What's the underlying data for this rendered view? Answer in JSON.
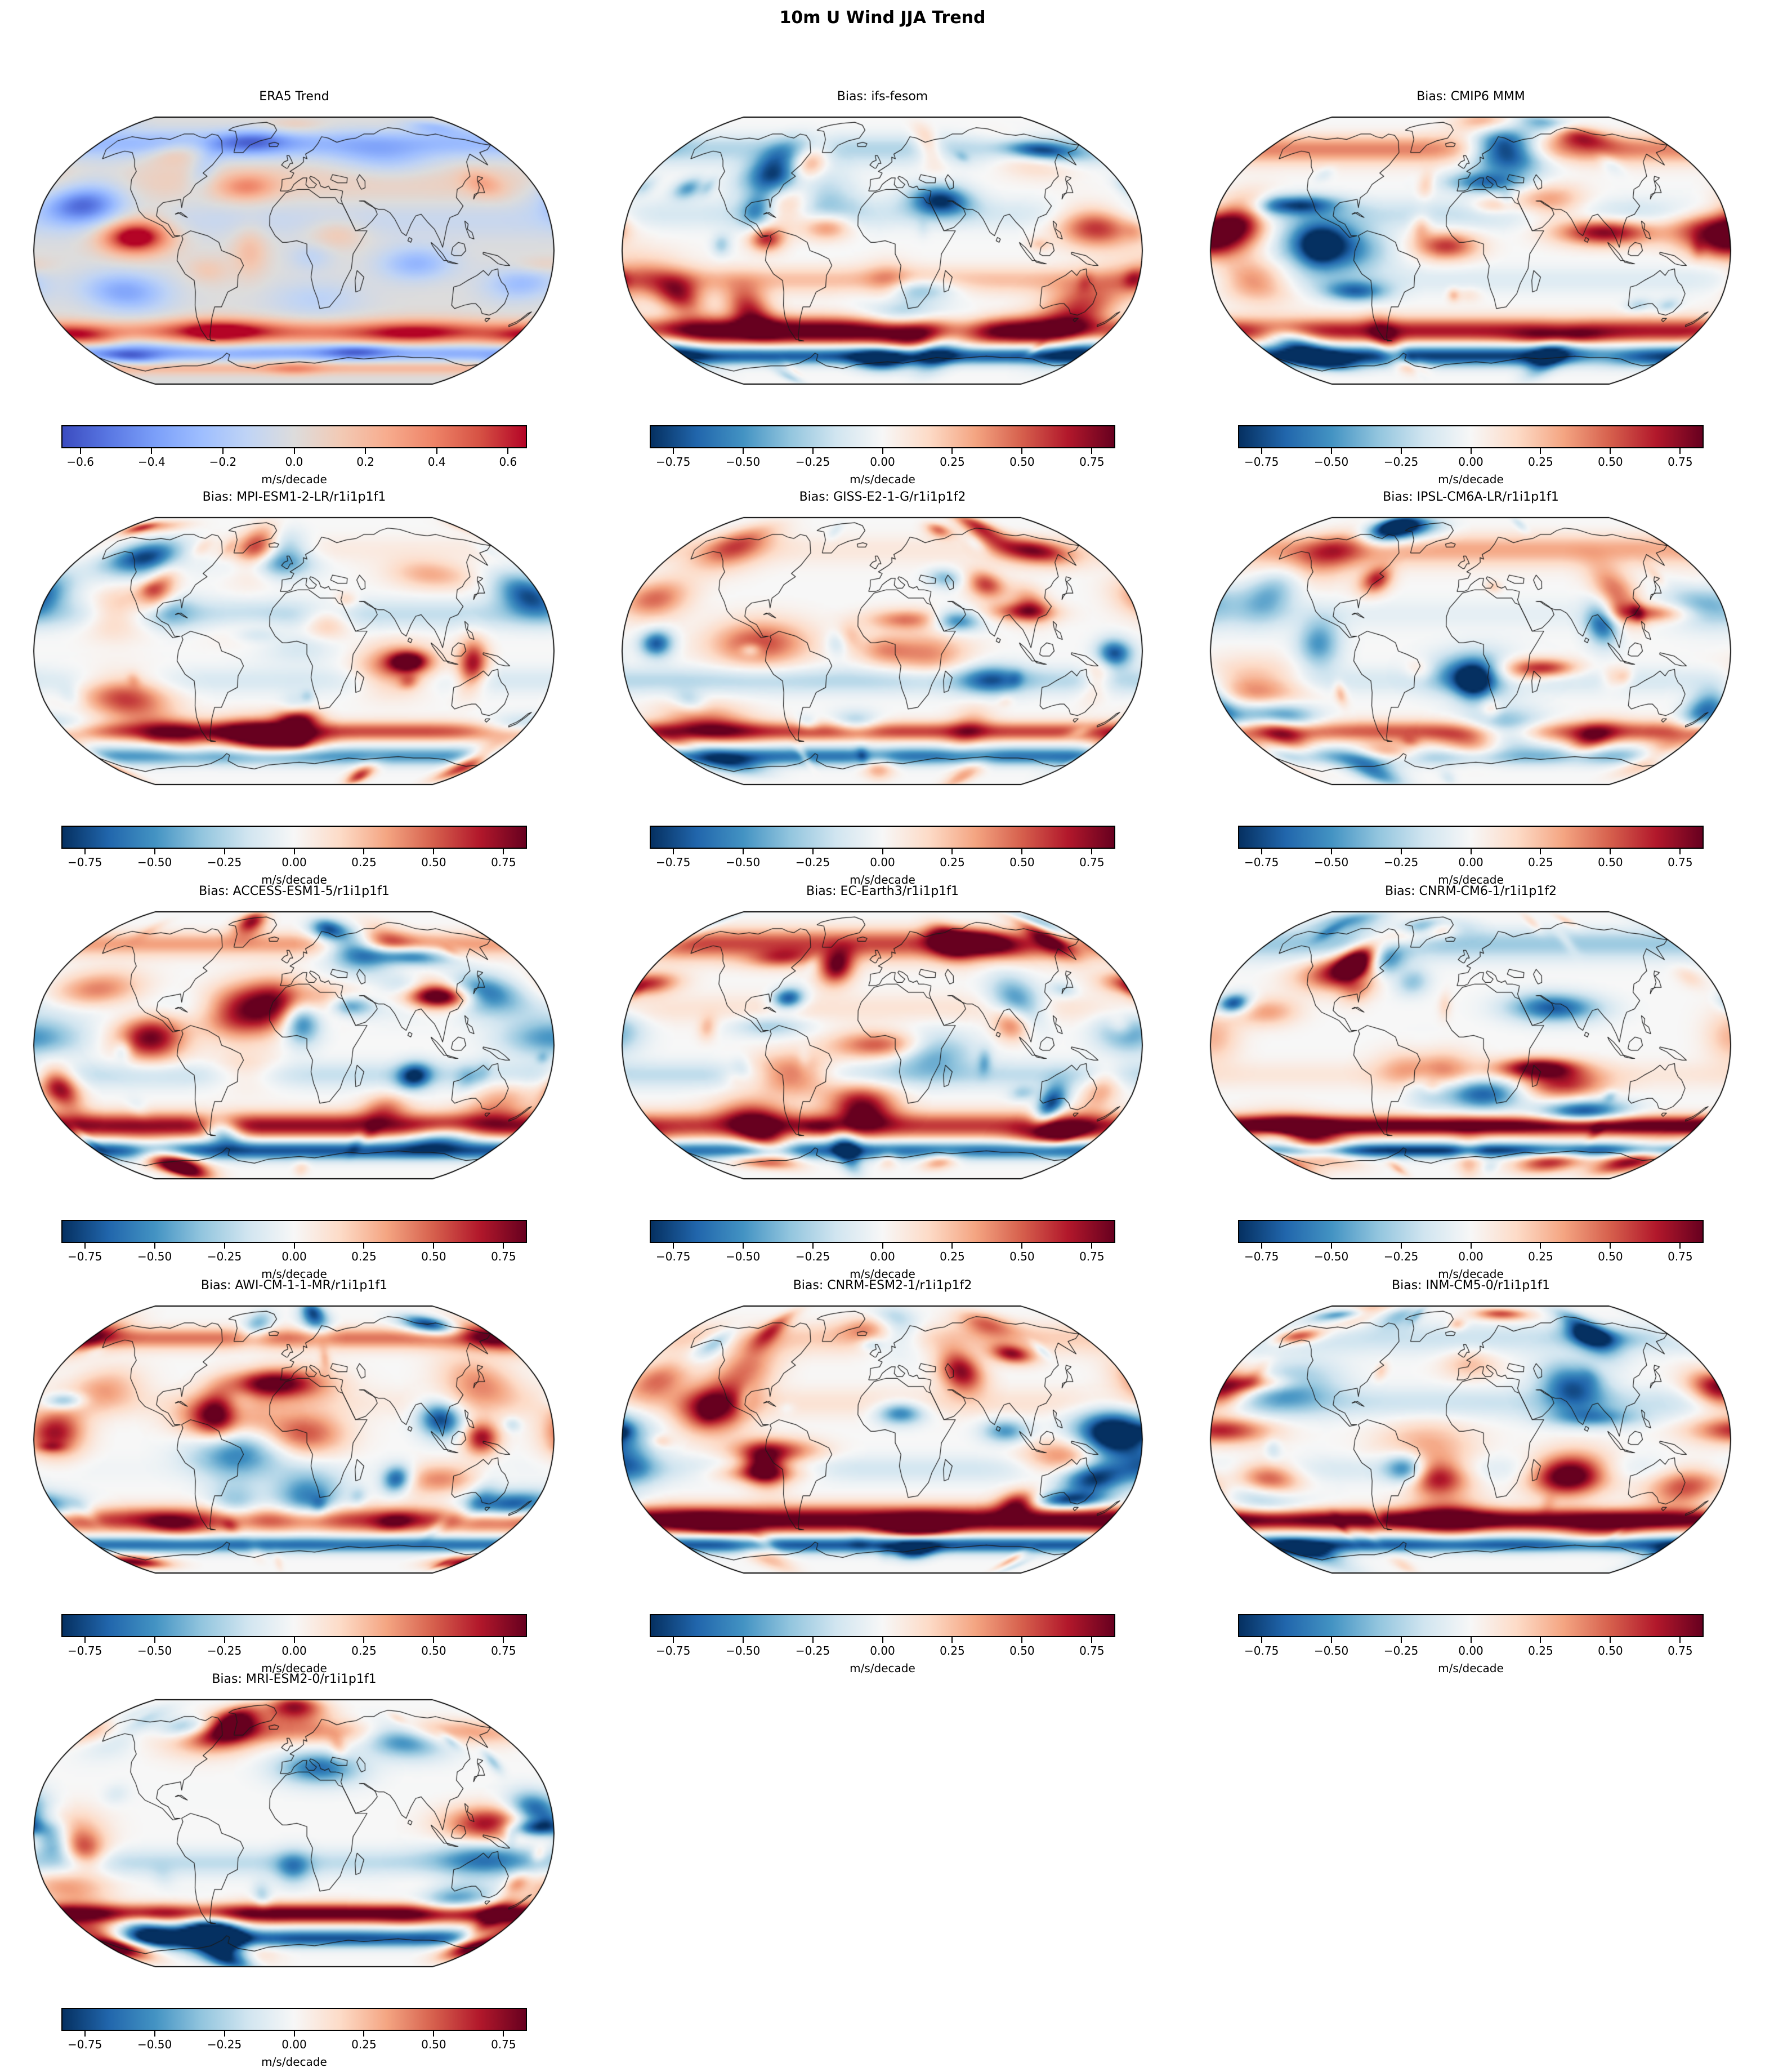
{
  "figure": {
    "title": "10m U Wind JJA Trend"
  },
  "colorbar_unit": "m/s/decade",
  "tick_sets": {
    "era5": [
      {
        "value": -0.6,
        "label": "−0.6"
      },
      {
        "value": -0.4,
        "label": "−0.4"
      },
      {
        "value": -0.2,
        "label": "−0.2"
      },
      {
        "value": 0.0,
        "label": "0.0"
      },
      {
        "value": 0.2,
        "label": "0.2"
      },
      {
        "value": 0.4,
        "label": "0.4"
      },
      {
        "value": 0.6,
        "label": "0.6"
      }
    ],
    "bias": [
      {
        "value": -0.75,
        "label": "−0.75"
      },
      {
        "value": -0.5,
        "label": "−0.50"
      },
      {
        "value": -0.25,
        "label": "−0.25"
      },
      {
        "value": 0.0,
        "label": "0.00"
      },
      {
        "value": 0.25,
        "label": "0.25"
      },
      {
        "value": 0.5,
        "label": "0.50"
      },
      {
        "value": 0.75,
        "label": "0.75"
      }
    ]
  },
  "panels": [
    {
      "title": "ERA5 Trend",
      "colormap": "coolwarm",
      "tick_set": "era5",
      "range": [
        -0.65,
        0.65
      ]
    },
    {
      "title": "Bias: ifs-fesom",
      "colormap": "RdBu_r",
      "tick_set": "bias",
      "range": [
        -0.83,
        0.83
      ]
    },
    {
      "title": "Bias: CMIP6 MMM",
      "colormap": "RdBu_r",
      "tick_set": "bias",
      "range": [
        -0.83,
        0.83
      ]
    },
    {
      "title": "Bias: MPI-ESM1-2-LR/r1i1p1f1",
      "colormap": "RdBu_r",
      "tick_set": "bias",
      "range": [
        -0.83,
        0.83
      ]
    },
    {
      "title": "Bias: GISS-E2-1-G/r1i1p1f2",
      "colormap": "RdBu_r",
      "tick_set": "bias",
      "range": [
        -0.83,
        0.83
      ]
    },
    {
      "title": "Bias: IPSL-CM6A-LR/r1i1p1f1",
      "colormap": "RdBu_r",
      "tick_set": "bias",
      "range": [
        -0.83,
        0.83
      ]
    },
    {
      "title": "Bias: ACCESS-ESM1-5/r1i1p1f1",
      "colormap": "RdBu_r",
      "tick_set": "bias",
      "range": [
        -0.83,
        0.83
      ]
    },
    {
      "title": "Bias: EC-Earth3/r1i1p1f1",
      "colormap": "RdBu_r",
      "tick_set": "bias",
      "range": [
        -0.83,
        0.83
      ]
    },
    {
      "title": "Bias: CNRM-CM6-1/r1i1p1f2",
      "colormap": "RdBu_r",
      "tick_set": "bias",
      "range": [
        -0.83,
        0.83
      ]
    },
    {
      "title": "Bias: AWI-CM-1-1-MR/r1i1p1f1",
      "colormap": "RdBu_r",
      "tick_set": "bias",
      "range": [
        -0.83,
        0.83
      ]
    },
    {
      "title": "Bias: CNRM-ESM2-1/r1i1p1f2",
      "colormap": "RdBu_r",
      "tick_set": "bias",
      "range": [
        -0.83,
        0.83
      ]
    },
    {
      "title": "Bias: INM-CM5-0/r1i1p1f1",
      "colormap": "RdBu_r",
      "tick_set": "bias",
      "range": [
        -0.83,
        0.83
      ]
    },
    {
      "title": "Bias: MRI-ESM2-0/r1i1p1f1",
      "colormap": "RdBu_r",
      "tick_set": "bias",
      "range": [
        -0.83,
        0.83
      ]
    }
  ],
  "chart_data": {
    "type": "heatmap",
    "title": "10m U Wind JJA Trend",
    "projection": "Robinson",
    "grid_layout": {
      "rows": 5,
      "cols": 3,
      "num_panels": 13
    },
    "unit": "m/s/decade",
    "panels": [
      {
        "title": "ERA5 Trend",
        "colormap": "coolwarm",
        "colorbar_ticks": [
          -0.6,
          -0.4,
          -0.2,
          0.0,
          0.2,
          0.4,
          0.6
        ],
        "colorbar_unit": "m/s/decade"
      },
      {
        "title": "Bias: ifs-fesom",
        "colormap": "RdBu_r",
        "colorbar_ticks": [
          -0.75,
          -0.5,
          -0.25,
          0.0,
          0.25,
          0.5,
          0.75
        ],
        "colorbar_unit": "m/s/decade"
      },
      {
        "title": "Bias: CMIP6 MMM",
        "colormap": "RdBu_r",
        "colorbar_ticks": [
          -0.75,
          -0.5,
          -0.25,
          0.0,
          0.25,
          0.5,
          0.75
        ],
        "colorbar_unit": "m/s/decade"
      },
      {
        "title": "Bias: MPI-ESM1-2-LR/r1i1p1f1",
        "colormap": "RdBu_r",
        "colorbar_ticks": [
          -0.75,
          -0.5,
          -0.25,
          0.0,
          0.25,
          0.5,
          0.75
        ],
        "colorbar_unit": "m/s/decade"
      },
      {
        "title": "Bias: GISS-E2-1-G/r1i1p1f2",
        "colormap": "RdBu_r",
        "colorbar_ticks": [
          -0.75,
          -0.5,
          -0.25,
          0.0,
          0.25,
          0.5,
          0.75
        ],
        "colorbar_unit": "m/s/decade"
      },
      {
        "title": "Bias: IPSL-CM6A-LR/r1i1p1f1",
        "colormap": "RdBu_r",
        "colorbar_ticks": [
          -0.75,
          -0.5,
          -0.25,
          0.0,
          0.25,
          0.5,
          0.75
        ],
        "colorbar_unit": "m/s/decade"
      },
      {
        "title": "Bias: ACCESS-ESM1-5/r1i1p1f1",
        "colormap": "RdBu_r",
        "colorbar_ticks": [
          -0.75,
          -0.5,
          -0.25,
          0.0,
          0.25,
          0.5,
          0.75
        ],
        "colorbar_unit": "m/s/decade"
      },
      {
        "title": "Bias: EC-Earth3/r1i1p1f1",
        "colormap": "RdBu_r",
        "colorbar_ticks": [
          -0.75,
          -0.5,
          -0.25,
          0.0,
          0.25,
          0.5,
          0.75
        ],
        "colorbar_unit": "m/s/decade"
      },
      {
        "title": "Bias: CNRM-CM6-1/r1i1p1f2",
        "colormap": "RdBu_r",
        "colorbar_ticks": [
          -0.75,
          -0.5,
          -0.25,
          0.0,
          0.25,
          0.5,
          0.75
        ],
        "colorbar_unit": "m/s/decade"
      },
      {
        "title": "Bias: AWI-CM-1-1-MR/r1i1p1f1",
        "colormap": "RdBu_r",
        "colorbar_ticks": [
          -0.75,
          -0.5,
          -0.25,
          0.0,
          0.25,
          0.5,
          0.75
        ],
        "colorbar_unit": "m/s/decade"
      },
      {
        "title": "Bias: CNRM-ESM2-1/r1i1p1f2",
        "colormap": "RdBu_r",
        "colorbar_ticks": [
          -0.75,
          -0.5,
          -0.25,
          0.0,
          0.25,
          0.5,
          0.75
        ],
        "colorbar_unit": "m/s/decade"
      },
      {
        "title": "Bias: INM-CM5-0/r1i1p1f1",
        "colormap": "RdBu_r",
        "colorbar_ticks": [
          -0.75,
          -0.5,
          -0.25,
          0.0,
          0.25,
          0.5,
          0.75
        ],
        "colorbar_unit": "m/s/decade"
      },
      {
        "title": "Bias: MRI-ESM2-0/r1i1p1f1",
        "colormap": "RdBu_r",
        "colorbar_ticks": [
          -0.75,
          -0.5,
          -0.25,
          0.0,
          0.25,
          0.5,
          0.75
        ],
        "colorbar_unit": "m/s/decade"
      }
    ],
    "notes": "Each panel is a filled global map (Robinson projection) with black coastlines. Panel 1 shows the ERA5 10m zonal wind JJA trend (coolwarm colors, blue high-latitude bands, strong red band near 50S, strong blue band near 60S). Panels 2-13 show model-minus-ERA5 bias fields (RdBu_r colors, mostly near-white with saturated dark-red band across the Southern Ocean around 45-55S and dark-blue patches around 60-70S and in the storm-track regions)."
  }
}
